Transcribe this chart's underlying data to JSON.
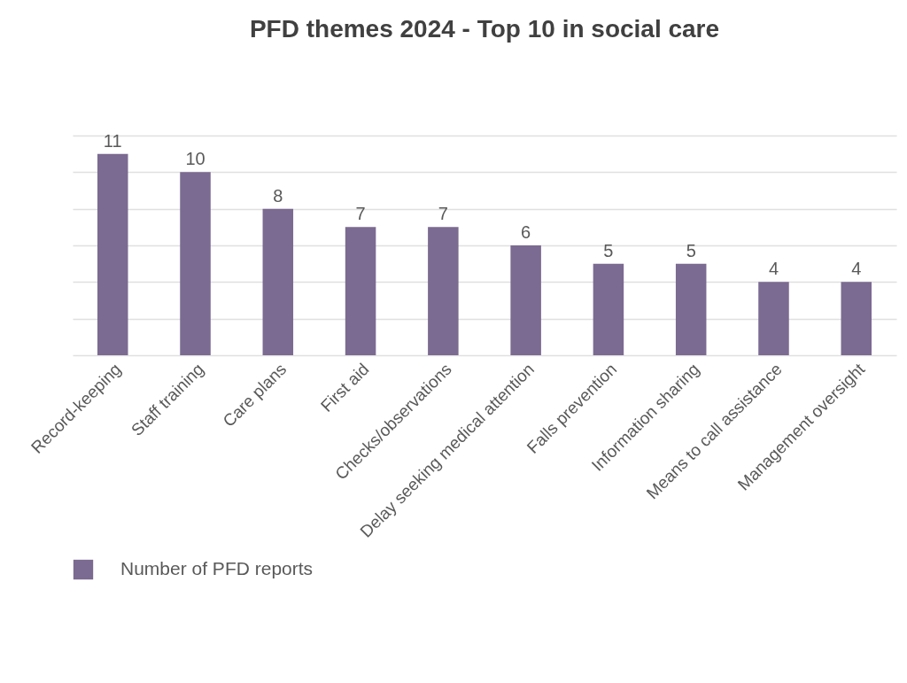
{
  "chart_data": {
    "type": "bar",
    "title": "PFD themes 2024 - Top 10 in social care",
    "categories": [
      "Record-keeping",
      "Staff training",
      "Care plans",
      "First aid",
      "Checks/observations",
      "Delay seeking medical attention",
      "Falls prevention",
      "Information sharing",
      "Means to call assistance",
      "Management oversight"
    ],
    "series": [
      {
        "name": "Number of PFD reports",
        "color": "#7b6a91",
        "values": [
          11,
          10,
          8,
          7,
          7,
          6,
          5,
          5,
          4,
          4
        ]
      }
    ],
    "ylim": [
      0,
      12
    ],
    "yticks": [
      {
        "value": 0,
        "label": null
      },
      {
        "value": 2,
        "label": null
      },
      {
        "value": 4,
        "label": null
      },
      {
        "value": 6,
        "label": null
      },
      {
        "value": 8,
        "label": null
      },
      {
        "value": 10,
        "label": null
      },
      {
        "value": 12,
        "label": null
      }
    ],
    "tick_labels": "x",
    "grid": "y",
    "data_labels": true,
    "legend": "bottom"
  }
}
